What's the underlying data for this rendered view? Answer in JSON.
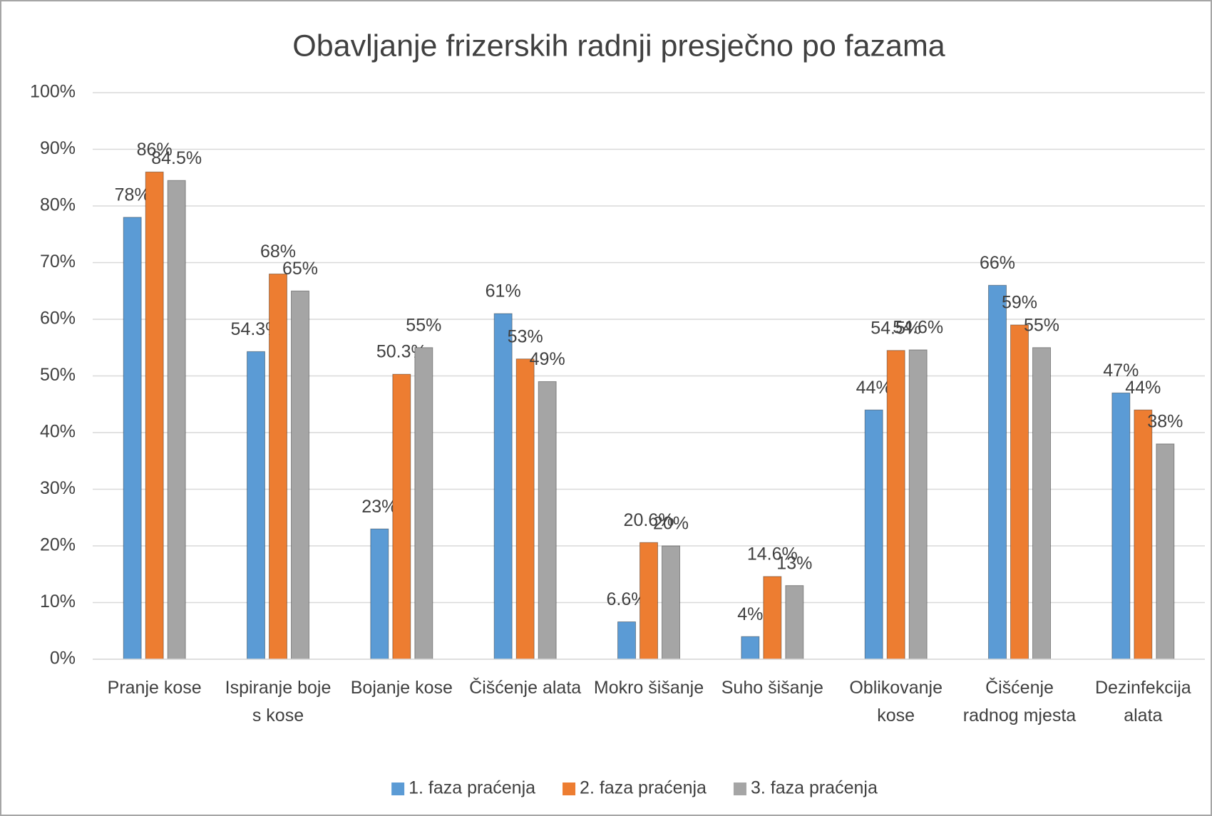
{
  "chart_data": {
    "type": "bar",
    "title": "Obavljanje frizerskih radnji presječno po fazama",
    "categories": [
      "Pranje kose",
      "Ispiranje boje s kose",
      "Bojanje kose",
      "Čišćenje alata",
      "Mokro šišanje",
      "Suho šišanje",
      "Oblikovanje kose",
      "Čišćenje radnog mjesta",
      "Dezinfekcija alata"
    ],
    "series": [
      {
        "name": "1. faza praćenja",
        "color": "#5b9bd5",
        "values": [
          78,
          54.3,
          23,
          61,
          6.6,
          4,
          44,
          66,
          47
        ],
        "value_labels": [
          "78%",
          "54.3%",
          "23%",
          "61%",
          "6.6%",
          "4%",
          "44%",
          "66%",
          "47%"
        ]
      },
      {
        "name": "2. faza praćenja",
        "color": "#ed7d31",
        "values": [
          86,
          68,
          50.3,
          53,
          20.6,
          14.6,
          54.5,
          59,
          44
        ],
        "value_labels": [
          "86%",
          "68%",
          "50.3%",
          "53%",
          "20.6%",
          "14.6%",
          "54.5%",
          "59%",
          "44%"
        ]
      },
      {
        "name": "3. faza praćenja",
        "color": "#a5a5a5",
        "values": [
          84.5,
          65,
          55,
          49,
          20,
          13,
          54.6,
          55,
          38
        ],
        "value_labels": [
          "84.5%",
          "65%",
          "55%",
          "49%",
          "20%",
          "13%",
          "54.6%",
          "55%",
          "38%"
        ]
      }
    ],
    "ylim": [
      0,
      100
    ],
    "yticks": [
      {
        "value": 0,
        "label": "0%"
      },
      {
        "value": 10,
        "label": "10%"
      },
      {
        "value": 20,
        "label": "20%"
      },
      {
        "value": 30,
        "label": "30%"
      },
      {
        "value": 40,
        "label": "40%"
      },
      {
        "value": 50,
        "label": "50%"
      },
      {
        "value": 60,
        "label": "60%"
      },
      {
        "value": 70,
        "label": "70%"
      },
      {
        "value": 80,
        "label": "80%"
      },
      {
        "value": 90,
        "label": "90%"
      },
      {
        "value": 100,
        "label": "100%"
      }
    ],
    "grid": true,
    "legend": "bottom"
  }
}
